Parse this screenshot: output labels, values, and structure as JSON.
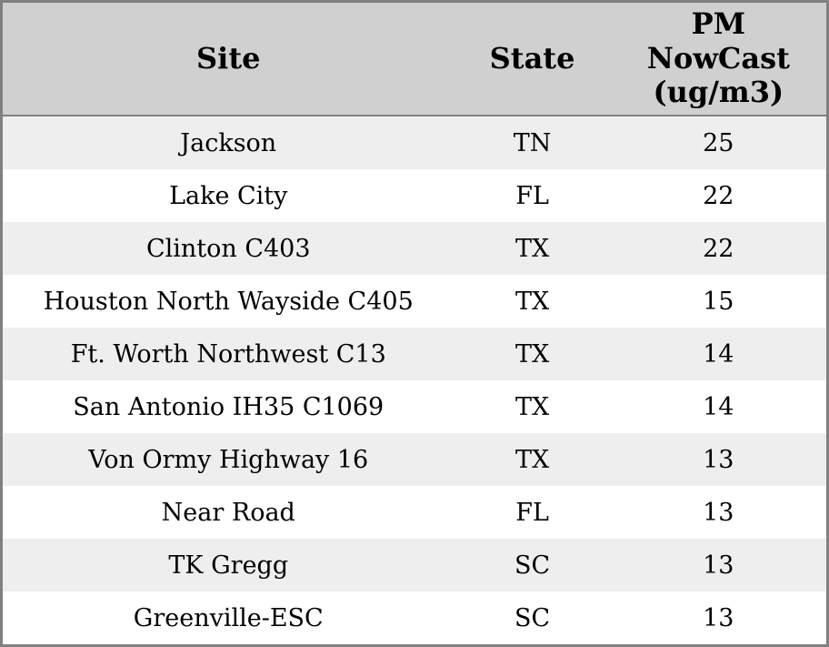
{
  "chart_data": {
    "type": "table",
    "columns": [
      {
        "label": "Site"
      },
      {
        "label": "State"
      },
      {
        "label": "PM\nNowCast\n(ug/m3)"
      }
    ],
    "rows": [
      [
        "Jackson",
        "TN",
        "25"
      ],
      [
        "Lake City",
        "FL",
        "22"
      ],
      [
        "Clinton C403",
        "TX",
        "22"
      ],
      [
        "Houston North Wayside C405",
        "TX",
        "15"
      ],
      [
        "Ft. Worth Northwest C13",
        "TX",
        "14"
      ],
      [
        "San Antonio IH35 C1069",
        "TX",
        "14"
      ],
      [
        "Von Ormy Highway 16",
        "TX",
        "13"
      ],
      [
        "Near Road",
        "FL",
        "13"
      ],
      [
        "TK Gregg",
        "SC",
        "13"
      ],
      [
        "Greenville-ESC",
        "SC",
        "13"
      ]
    ]
  },
  "colors": {
    "header_bg": "#d0d0d0",
    "row_bg": "#ffffff",
    "row_alt_bg": "#eeeeee",
    "border": "#808080",
    "text": "#000000"
  }
}
